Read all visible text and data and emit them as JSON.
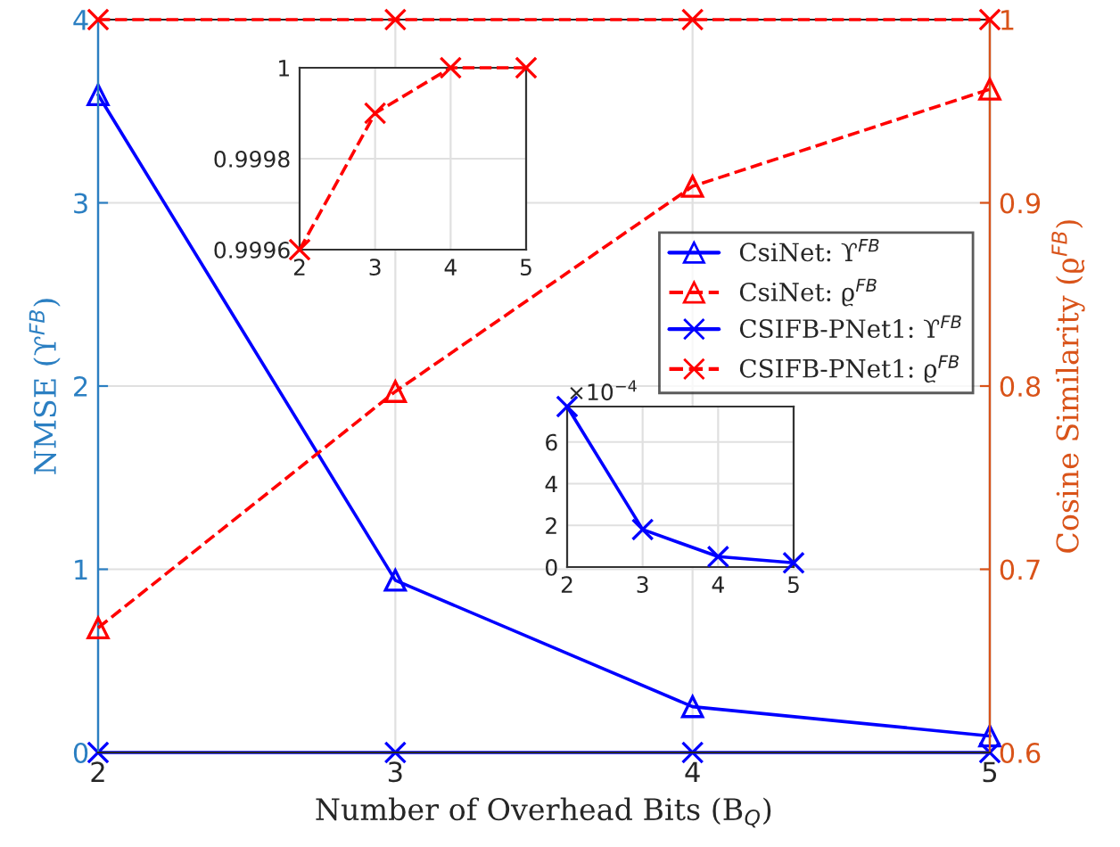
{
  "chart_data": [
    {
      "type": "line",
      "xlabel": "Number of Overhead Bits (B$_{Q}$)",
      "ylabel": "NMSE (ϒ$^{FB}$)",
      "y2label": "Cosine Similarity (ϱ$^{FB}$)",
      "x": [
        2,
        3,
        4,
        5
      ],
      "xlim": [
        2,
        5
      ],
      "xticks": [
        2,
        3,
        4,
        5
      ],
      "ylim": [
        0,
        4
      ],
      "yticks": [
        0,
        1,
        2,
        3,
        4
      ],
      "y2lim": [
        0.6,
        1
      ],
      "y2ticks": [
        0.6,
        0.7,
        0.8,
        0.9,
        1
      ],
      "grid": true,
      "legend": "right",
      "series": [
        {
          "name": "CsiNet: ϒ$^{FB}$",
          "color": "#0000ff",
          "values": [
            3.59,
            0.94,
            0.25,
            0.09
          ],
          "marker": "triangle",
          "line_style": "solid"
        },
        {
          "name": "CsiNet: ϱ$^{FB}$",
          "color": "#ff0000",
          "values": [
            0.668,
            0.797,
            0.909,
            0.962
          ],
          "marker": "triangle",
          "line_style": "dashed",
          "axis": "y2"
        },
        {
          "name": "CSIFB-PNet1: ϒ$^{FB}$",
          "color": "#0000ff",
          "values": [
            0.0,
            0.0,
            0.0,
            0.0
          ],
          "marker": "cross",
          "line_style": "solid"
        },
        {
          "name": "CSIFB-PNet1: ϱ$^{FB}$",
          "color": "#ff0000",
          "values": [
            1.0,
            1.0,
            1.0,
            1.0
          ],
          "marker": "cross",
          "line_style": "dashed",
          "axis": "y2"
        }
      ]
    },
    {
      "type": "line",
      "x": [
        2,
        3,
        4,
        5
      ],
      "xlim": [
        2,
        5
      ],
      "xticks": [
        2,
        3,
        4,
        5
      ],
      "ylim": [
        0.9996,
        1
      ],
      "yticks": [
        0.9996,
        0.9998,
        1
      ],
      "grid": true,
      "series": [
        {
          "color": "#ff0000",
          "values": [
            0.9996,
            0.9999,
            1.0,
            1.0
          ],
          "marker": "cross",
          "line_style": "dashed"
        }
      ]
    },
    {
      "type": "line",
      "x": [
        2,
        3,
        4,
        5
      ],
      "xlim": [
        2,
        5
      ],
      "xticks": [
        2,
        3,
        4,
        5
      ],
      "ylim": [
        0,
        7.7
      ],
      "yticks": [
        0,
        2,
        4,
        6
      ],
      "grid": true,
      "annotations": [
        "×10$^{−4}$"
      ],
      "series": [
        {
          "color": "#0000ff",
          "values": [
            7.7,
            1.8,
            0.5,
            0.2
          ],
          "marker": "cross",
          "line_style": "solid"
        }
      ]
    }
  ]
}
